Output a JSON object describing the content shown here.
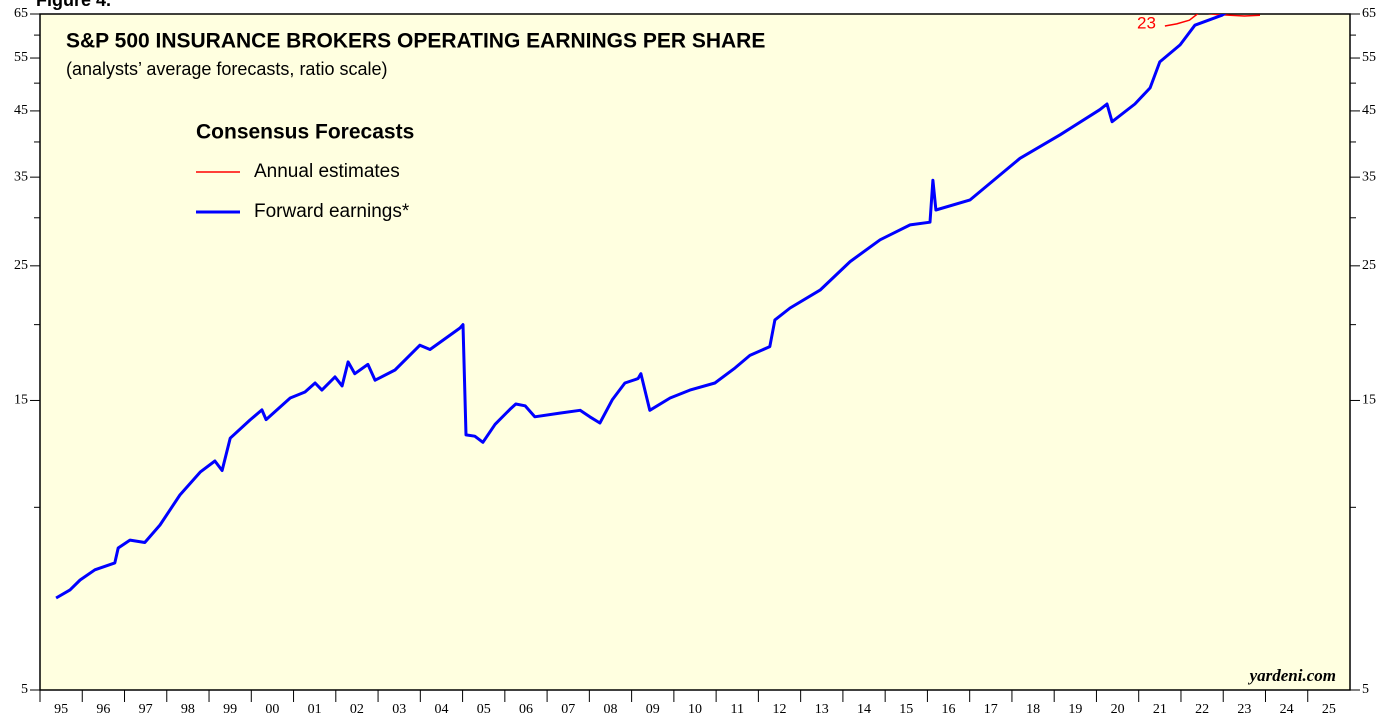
{
  "chart_data": {
    "type": "line",
    "figure_label": "Figure 4.",
    "title": "S&P 500 INSURANCE BROKERS OPERATING EARNINGS PER SHARE",
    "subtitle": "(analysts’ average forecasts, ratio scale)",
    "legend_title": "Consensus Forecasts",
    "source": "yardeni.com",
    "annotations": [
      {
        "text": "23",
        "x": 2021.55,
        "y": 63
      }
    ],
    "log_scale": true,
    "xlim": [
      1995,
      2026
    ],
    "ylim": [
      5,
      65
    ],
    "yticks": [
      5,
      15,
      25,
      35,
      45,
      55,
      65
    ],
    "minor_yticks": [
      10,
      20,
      30,
      40,
      50,
      60
    ],
    "xticks": [
      {
        "value": 1995,
        "label": "95"
      },
      {
        "value": 1996,
        "label": "96"
      },
      {
        "value": 1997,
        "label": "97"
      },
      {
        "value": 1998,
        "label": "98"
      },
      {
        "value": 1999,
        "label": "99"
      },
      {
        "value": 2000,
        "label": "00"
      },
      {
        "value": 2001,
        "label": "01"
      },
      {
        "value": 2002,
        "label": "02"
      },
      {
        "value": 2003,
        "label": "03"
      },
      {
        "value": 2004,
        "label": "04"
      },
      {
        "value": 2005,
        "label": "05"
      },
      {
        "value": 2006,
        "label": "06"
      },
      {
        "value": 2007,
        "label": "07"
      },
      {
        "value": 2008,
        "label": "08"
      },
      {
        "value": 2009,
        "label": "09"
      },
      {
        "value": 2010,
        "label": "10"
      },
      {
        "value": 2011,
        "label": "11"
      },
      {
        "value": 2012,
        "label": "12"
      },
      {
        "value": 2013,
        "label": "13"
      },
      {
        "value": 2014,
        "label": "14"
      },
      {
        "value": 2015,
        "label": "15"
      },
      {
        "value": 2016,
        "label": "16"
      },
      {
        "value": 2017,
        "label": "17"
      },
      {
        "value": 2018,
        "label": "18"
      },
      {
        "value": 2019,
        "label": "19"
      },
      {
        "value": 2020,
        "label": "20"
      },
      {
        "value": 2021,
        "label": "21"
      },
      {
        "value": 2022,
        "label": "22"
      },
      {
        "value": 2023,
        "label": "23"
      },
      {
        "value": 2024,
        "label": "24"
      },
      {
        "value": 2025,
        "label": "25"
      }
    ],
    "series": [
      {
        "name": "Annual estimates",
        "color": "#ff0000",
        "x": [
          2021.62,
          2021.9,
          2022.2,
          2022.45,
          2022.8,
          2023.16,
          2023.5,
          2023.87
        ],
        "values": [
          62.1,
          62.6,
          63.5,
          65.5,
          64.9,
          64.7,
          64.5,
          64.7
        ]
      },
      {
        "name": "Forward earnings*",
        "color": "#0000ff",
        "x": [
          1995.38,
          1995.71,
          1995.95,
          1996.3,
          1996.77,
          1996.85,
          1997.13,
          1997.48,
          1997.84,
          1998.31,
          1998.79,
          1999.14,
          1999.31,
          1999.5,
          1999.97,
          2000.25,
          2000.35,
          2000.92,
          2001.27,
          2001.51,
          2001.67,
          2001.98,
          2002.15,
          2002.29,
          2002.45,
          2002.76,
          2002.93,
          2003.4,
          2003.99,
          2004.23,
          2004.94,
          2005.01,
          2005.08,
          2005.29,
          2005.48,
          2005.77,
          2006.12,
          2006.26,
          2006.48,
          2006.71,
          2007.3,
          2007.78,
          2008.01,
          2008.25,
          2008.54,
          2008.84,
          2009.15,
          2009.22,
          2009.43,
          2009.91,
          2010.38,
          2010.97,
          2011.45,
          2011.8,
          2012.27,
          2012.39,
          2012.75,
          2013.46,
          2014.17,
          2014.88,
          2015.59,
          2016.06,
          2016.13,
          2016.2,
          2017.01,
          2017.72,
          2018.19,
          2019.14,
          2020.08,
          2020.25,
          2020.37,
          2020.91,
          2021.27,
          2021.5,
          2021.98,
          2022.33,
          2022.97,
          2023.51
        ],
        "values": [
          7.09,
          7.31,
          7.59,
          7.89,
          8.1,
          8.57,
          8.83,
          8.75,
          9.35,
          10.48,
          11.43,
          11.92,
          11.5,
          13.0,
          13.93,
          14.47,
          13.95,
          15.14,
          15.49,
          16.03,
          15.6,
          16.4,
          15.85,
          17.36,
          16.6,
          17.2,
          16.2,
          16.84,
          18.5,
          18.2,
          19.75,
          20.0,
          13.16,
          13.1,
          12.8,
          13.7,
          14.5,
          14.8,
          14.7,
          14.1,
          14.3,
          14.45,
          14.1,
          13.77,
          15.03,
          16.03,
          16.3,
          16.6,
          14.45,
          15.14,
          15.6,
          16.03,
          16.97,
          17.8,
          18.4,
          20.36,
          21.3,
          22.8,
          25.4,
          27.6,
          29.2,
          29.5,
          34.6,
          30.9,
          32.1,
          35.3,
          37.6,
          41.1,
          45.2,
          46.2,
          43.2,
          46.2,
          49.1,
          54.2,
          57.8,
          62.3,
          64.7,
          68.5
        ]
      }
    ]
  }
}
